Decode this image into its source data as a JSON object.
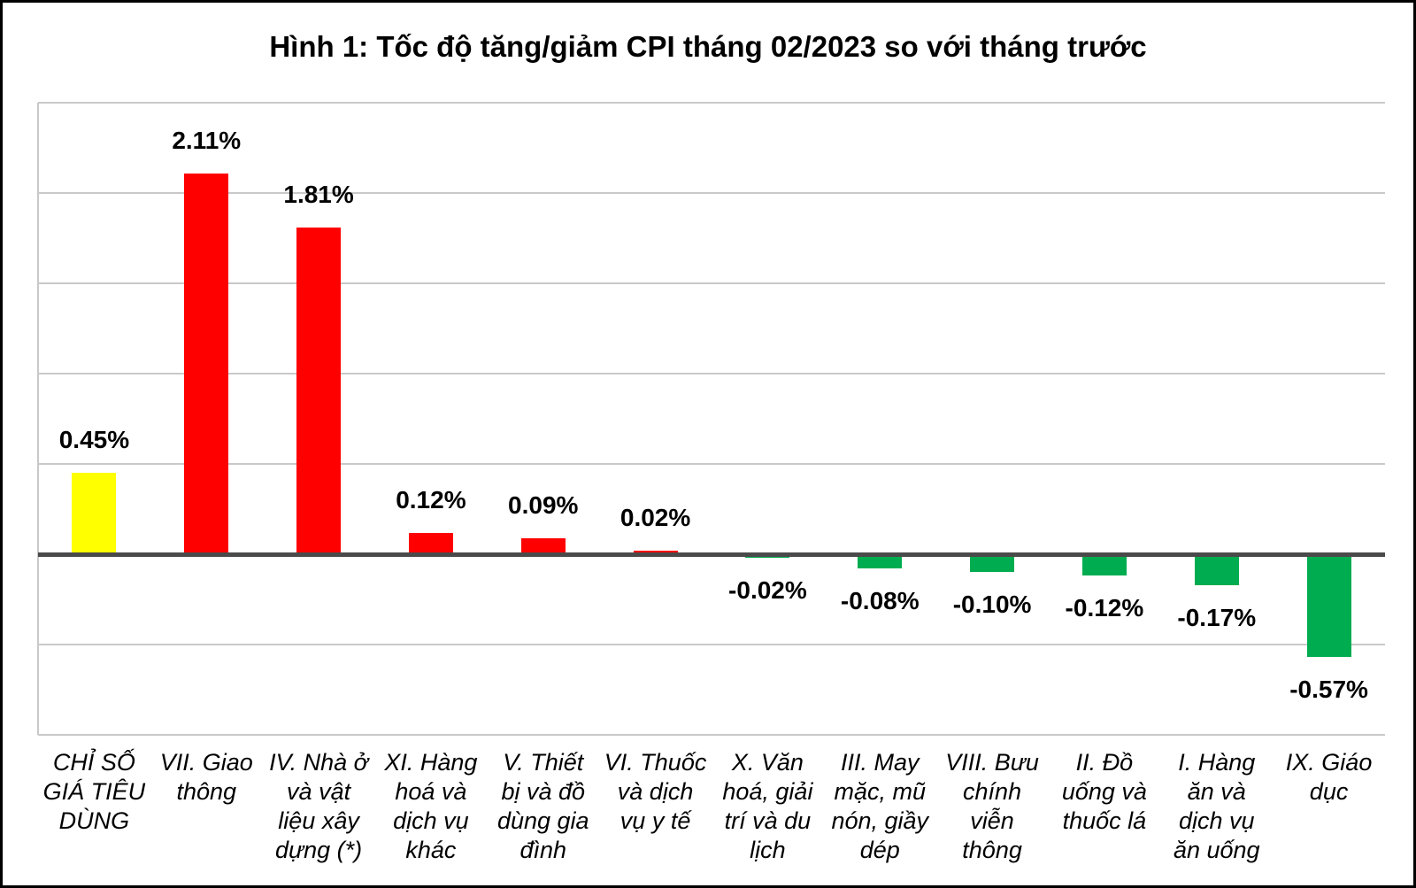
{
  "chart_data": {
    "type": "bar",
    "title": "Hình 1: Tốc độ tăng/giảm CPI tháng 02/2023 so với tháng trước",
    "unit": "%",
    "xlabel": "",
    "ylabel": "",
    "ylim": [
      -1.0,
      2.5
    ],
    "gridline_interval": 0.5,
    "grid": true,
    "legend": false,
    "categories": [
      "CHỈ SỐ GIÁ TIÊU DÙNG",
      "VII. Giao thông",
      "IV. Nhà ở và vật liệu xây dựng (*)",
      "XI. Hàng hoá và dịch vụ khác",
      "V. Thiết bị và đồ dùng gia đình",
      "VI. Thuốc và dịch vụ y tế",
      "X. Văn hoá, giải trí và du lịch",
      "III. May mặc, mũ nón, giầy dép",
      "VIII. Bưu chính viễn thông",
      "II. Đồ uống và thuốc lá",
      "I. Hàng ăn và dịch vụ ăn uống",
      "IX. Giáo dục"
    ],
    "category_lines": [
      "CHỈ SỐ\nGIÁ TIÊU\nDÙNG",
      "VII. Giao\nthông",
      "IV. Nhà ở\nvà vật\nliệu xây\ndựng (*)",
      "XI. Hàng\nhoá và\ndịch vụ\nkhác",
      "V. Thiết\nbị và đồ\ndùng gia\nđình",
      "VI. Thuốc\nvà dịch\nvụ y tế",
      "X. Văn\nhoá, giải\ntrí và du\nlịch",
      "III. May\nmặc, mũ\nnón, giầy\ndép",
      "VIII. Bưu\nchính\nviễn\nthông",
      "II. Đồ\nuống và\nthuốc lá",
      "I. Hàng\năn và\ndịch vụ\năn uống",
      "IX. Giáo\ndục"
    ],
    "values": [
      0.45,
      2.11,
      1.81,
      0.12,
      0.09,
      0.02,
      -0.02,
      -0.08,
      -0.1,
      -0.12,
      -0.17,
      -0.57
    ],
    "data_labels": [
      "0.45%",
      "2.11%",
      "1.81%",
      "0.12%",
      "0.09%",
      "0.02%",
      "-0.02%",
      "-0.08%",
      "-0.10%",
      "-0.12%",
      "-0.17%",
      "-0.57%"
    ],
    "bar_colors": [
      "#FFFF00",
      "#FF0000",
      "#FF0000",
      "#FF0000",
      "#FF0000",
      "#FF0000",
      "#00AC50",
      "#00AC50",
      "#00AC50",
      "#00AC50",
      "#00AC50",
      "#00AC50"
    ],
    "colors": {
      "overall_cpi": "#FFFF00",
      "increase": "#FF0000",
      "decrease": "#00AC50",
      "axis": "#4a4a4a",
      "gridline": "#c9c9c9",
      "text": "#000000"
    }
  }
}
